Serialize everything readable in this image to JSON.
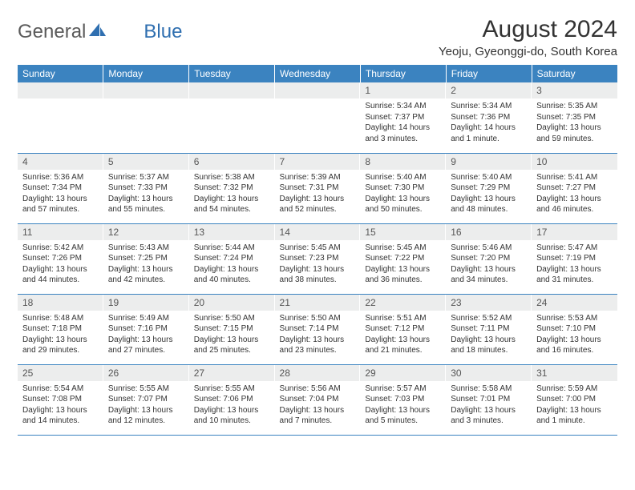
{
  "logo": {
    "text1": "General",
    "text2": "Blue"
  },
  "title": "August 2024",
  "location": "Yeoju, Gyeonggi-do, South Korea",
  "colors": {
    "header_bg": "#3b83c0",
    "header_fg": "#ffffff",
    "daynum_bg": "#eceded",
    "border": "#3b83c0",
    "text": "#333333",
    "logo_gray": "#5a5a5a",
    "logo_blue": "#2f6fb0"
  },
  "daysOfWeek": [
    "Sunday",
    "Monday",
    "Tuesday",
    "Wednesday",
    "Thursday",
    "Friday",
    "Saturday"
  ],
  "weeks": [
    [
      {
        "n": "",
        "lines": []
      },
      {
        "n": "",
        "lines": []
      },
      {
        "n": "",
        "lines": []
      },
      {
        "n": "",
        "lines": []
      },
      {
        "n": "1",
        "lines": [
          "Sunrise: 5:34 AM",
          "Sunset: 7:37 PM",
          "Daylight: 14 hours and 3 minutes."
        ]
      },
      {
        "n": "2",
        "lines": [
          "Sunrise: 5:34 AM",
          "Sunset: 7:36 PM",
          "Daylight: 14 hours and 1 minute."
        ]
      },
      {
        "n": "3",
        "lines": [
          "Sunrise: 5:35 AM",
          "Sunset: 7:35 PM",
          "Daylight: 13 hours and 59 minutes."
        ]
      }
    ],
    [
      {
        "n": "4",
        "lines": [
          "Sunrise: 5:36 AM",
          "Sunset: 7:34 PM",
          "Daylight: 13 hours and 57 minutes."
        ]
      },
      {
        "n": "5",
        "lines": [
          "Sunrise: 5:37 AM",
          "Sunset: 7:33 PM",
          "Daylight: 13 hours and 55 minutes."
        ]
      },
      {
        "n": "6",
        "lines": [
          "Sunrise: 5:38 AM",
          "Sunset: 7:32 PM",
          "Daylight: 13 hours and 54 minutes."
        ]
      },
      {
        "n": "7",
        "lines": [
          "Sunrise: 5:39 AM",
          "Sunset: 7:31 PM",
          "Daylight: 13 hours and 52 minutes."
        ]
      },
      {
        "n": "8",
        "lines": [
          "Sunrise: 5:40 AM",
          "Sunset: 7:30 PM",
          "Daylight: 13 hours and 50 minutes."
        ]
      },
      {
        "n": "9",
        "lines": [
          "Sunrise: 5:40 AM",
          "Sunset: 7:29 PM",
          "Daylight: 13 hours and 48 minutes."
        ]
      },
      {
        "n": "10",
        "lines": [
          "Sunrise: 5:41 AM",
          "Sunset: 7:27 PM",
          "Daylight: 13 hours and 46 minutes."
        ]
      }
    ],
    [
      {
        "n": "11",
        "lines": [
          "Sunrise: 5:42 AM",
          "Sunset: 7:26 PM",
          "Daylight: 13 hours and 44 minutes."
        ]
      },
      {
        "n": "12",
        "lines": [
          "Sunrise: 5:43 AM",
          "Sunset: 7:25 PM",
          "Daylight: 13 hours and 42 minutes."
        ]
      },
      {
        "n": "13",
        "lines": [
          "Sunrise: 5:44 AM",
          "Sunset: 7:24 PM",
          "Daylight: 13 hours and 40 minutes."
        ]
      },
      {
        "n": "14",
        "lines": [
          "Sunrise: 5:45 AM",
          "Sunset: 7:23 PM",
          "Daylight: 13 hours and 38 minutes."
        ]
      },
      {
        "n": "15",
        "lines": [
          "Sunrise: 5:45 AM",
          "Sunset: 7:22 PM",
          "Daylight: 13 hours and 36 minutes."
        ]
      },
      {
        "n": "16",
        "lines": [
          "Sunrise: 5:46 AM",
          "Sunset: 7:20 PM",
          "Daylight: 13 hours and 34 minutes."
        ]
      },
      {
        "n": "17",
        "lines": [
          "Sunrise: 5:47 AM",
          "Sunset: 7:19 PM",
          "Daylight: 13 hours and 31 minutes."
        ]
      }
    ],
    [
      {
        "n": "18",
        "lines": [
          "Sunrise: 5:48 AM",
          "Sunset: 7:18 PM",
          "Daylight: 13 hours and 29 minutes."
        ]
      },
      {
        "n": "19",
        "lines": [
          "Sunrise: 5:49 AM",
          "Sunset: 7:16 PM",
          "Daylight: 13 hours and 27 minutes."
        ]
      },
      {
        "n": "20",
        "lines": [
          "Sunrise: 5:50 AM",
          "Sunset: 7:15 PM",
          "Daylight: 13 hours and 25 minutes."
        ]
      },
      {
        "n": "21",
        "lines": [
          "Sunrise: 5:50 AM",
          "Sunset: 7:14 PM",
          "Daylight: 13 hours and 23 minutes."
        ]
      },
      {
        "n": "22",
        "lines": [
          "Sunrise: 5:51 AM",
          "Sunset: 7:12 PM",
          "Daylight: 13 hours and 21 minutes."
        ]
      },
      {
        "n": "23",
        "lines": [
          "Sunrise: 5:52 AM",
          "Sunset: 7:11 PM",
          "Daylight: 13 hours and 18 minutes."
        ]
      },
      {
        "n": "24",
        "lines": [
          "Sunrise: 5:53 AM",
          "Sunset: 7:10 PM",
          "Daylight: 13 hours and 16 minutes."
        ]
      }
    ],
    [
      {
        "n": "25",
        "lines": [
          "Sunrise: 5:54 AM",
          "Sunset: 7:08 PM",
          "Daylight: 13 hours and 14 minutes."
        ]
      },
      {
        "n": "26",
        "lines": [
          "Sunrise: 5:55 AM",
          "Sunset: 7:07 PM",
          "Daylight: 13 hours and 12 minutes."
        ]
      },
      {
        "n": "27",
        "lines": [
          "Sunrise: 5:55 AM",
          "Sunset: 7:06 PM",
          "Daylight: 13 hours and 10 minutes."
        ]
      },
      {
        "n": "28",
        "lines": [
          "Sunrise: 5:56 AM",
          "Sunset: 7:04 PM",
          "Daylight: 13 hours and 7 minutes."
        ]
      },
      {
        "n": "29",
        "lines": [
          "Sunrise: 5:57 AM",
          "Sunset: 7:03 PM",
          "Daylight: 13 hours and 5 minutes."
        ]
      },
      {
        "n": "30",
        "lines": [
          "Sunrise: 5:58 AM",
          "Sunset: 7:01 PM",
          "Daylight: 13 hours and 3 minutes."
        ]
      },
      {
        "n": "31",
        "lines": [
          "Sunrise: 5:59 AM",
          "Sunset: 7:00 PM",
          "Daylight: 13 hours and 1 minute."
        ]
      }
    ]
  ]
}
